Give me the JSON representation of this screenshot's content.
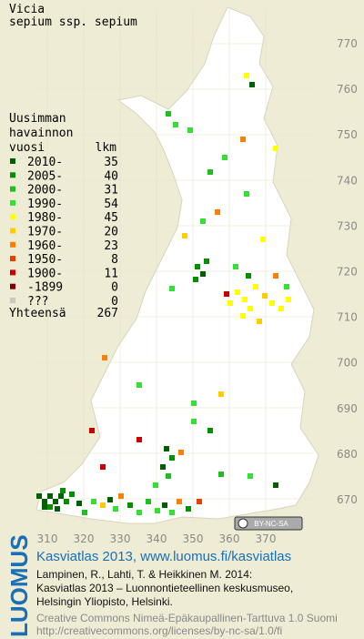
{
  "title": [
    "Vicia",
    "sepium ssp. sepium"
  ],
  "legend": {
    "header": [
      "Uusimman",
      "havainnon",
      "vuosi"
    ],
    "count_header": "lkm",
    "rows": [
      {
        "label": "2010-",
        "count": 35,
        "color": "#005f00"
      },
      {
        "label": "2005-",
        "count": 40,
        "color": "#009000"
      },
      {
        "label": "2000-",
        "count": 31,
        "color": "#1fbf1f"
      },
      {
        "label": "1990-",
        "count": 54,
        "color": "#33e033"
      },
      {
        "label": "1980-",
        "count": 45,
        "color": "#ffff00"
      },
      {
        "label": "1970-",
        "count": 20,
        "color": "#ffcc00"
      },
      {
        "label": "1960-",
        "count": 23,
        "color": "#ff8000"
      },
      {
        "label": "1950-",
        "count": 8,
        "color": "#e84000"
      },
      {
        "label": "1900-",
        "count": 11,
        "color": "#c80000"
      },
      {
        "label": "-1899",
        "count": 0,
        "color": "#800000"
      },
      {
        "label": "???",
        "count": 0,
        "color": "#c8c8c8"
      }
    ],
    "total_label": "Yhteensä",
    "total": 267
  },
  "map": {
    "y_labels": [
      770,
      760,
      750,
      740,
      730,
      720,
      710,
      700,
      690,
      680,
      670
    ],
    "x_labels": [
      310,
      320,
      330,
      340,
      350,
      360,
      370
    ]
  },
  "license_badge": "BY-NC-SA",
  "logo": "LUOMUS",
  "footer": {
    "link": "Kasviatlas 2013, www.luomus.fi/kasviatlas",
    "citation": [
      "Lampinen, R., Lahti, T. & Heikkinen M. 2014:",
      "Kasviatlas 2013 – Luonnontieteellinen keskusmuseo,",
      "Helsingin Yliopisto, Helsinki."
    ],
    "license": [
      "Creative Commons Nimeä-Epäkaupallinen-Tarttuva 1.0 Suomi",
      "http://creativecommons.org/licenses/by-nc-sa/1.0/fi"
    ]
  }
}
